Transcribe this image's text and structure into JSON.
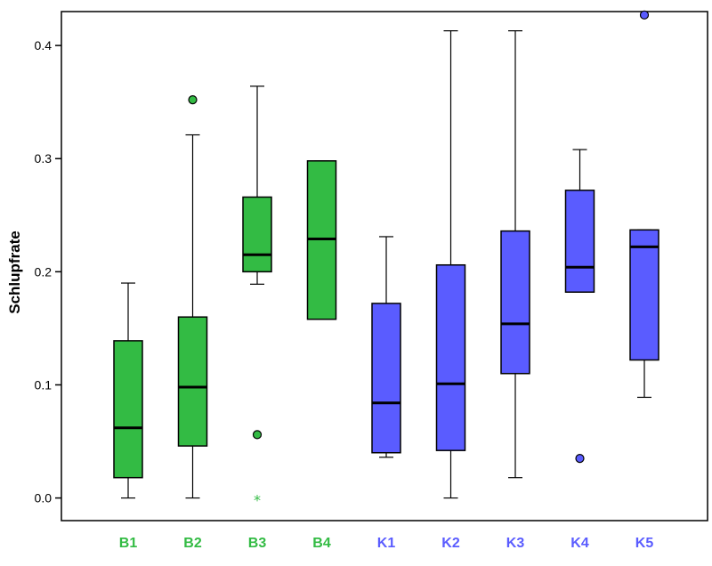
{
  "chart_data": {
    "type": "boxplot",
    "ylabel": "Schlupfrate",
    "xlabel": "",
    "ylim": [
      -0.02,
      0.43
    ],
    "yticks": [
      {
        "v": 0.0,
        "label": "0.0"
      },
      {
        "v": 0.1,
        "label": "0.1"
      },
      {
        "v": 0.2,
        "label": "0.2"
      },
      {
        "v": 0.3,
        "label": "0.3"
      },
      {
        "v": 0.4,
        "label": "0.4"
      }
    ],
    "colors": {
      "B": "#33bb44",
      "K": "#5a5cff"
    },
    "categories": [
      "B1",
      "B2",
      "B3",
      "B4",
      "K1",
      "K2",
      "K3",
      "K4",
      "K5"
    ],
    "boxes": [
      {
        "label": "B1",
        "group": "B",
        "whisker_low": 0.0,
        "q1": 0.018,
        "median": 0.062,
        "q3": 0.139,
        "whisker_high": 0.19,
        "outliers": [],
        "extremes": []
      },
      {
        "label": "B2",
        "group": "B",
        "whisker_low": 0.0,
        "q1": 0.046,
        "median": 0.098,
        "q3": 0.16,
        "whisker_high": 0.321,
        "outliers": [
          0.352
        ],
        "extremes": []
      },
      {
        "label": "B3",
        "group": "B",
        "whisker_low": 0.189,
        "q1": 0.2,
        "median": 0.215,
        "q3": 0.266,
        "whisker_high": 0.364,
        "outliers": [
          0.056
        ],
        "extremes": [
          0.0
        ]
      },
      {
        "label": "B4",
        "group": "B",
        "whisker_low": 0.158,
        "q1": 0.158,
        "median": 0.229,
        "q3": 0.298,
        "whisker_high": 0.298,
        "outliers": [],
        "extremes": []
      },
      {
        "label": "K1",
        "group": "K",
        "whisker_low": 0.036,
        "q1": 0.04,
        "median": 0.084,
        "q3": 0.172,
        "whisker_high": 0.231,
        "outliers": [],
        "extremes": []
      },
      {
        "label": "K2",
        "group": "K",
        "whisker_low": 0.0,
        "q1": 0.042,
        "median": 0.101,
        "q3": 0.206,
        "whisker_high": 0.413,
        "outliers": [],
        "extremes": []
      },
      {
        "label": "K3",
        "group": "K",
        "whisker_low": 0.018,
        "q1": 0.11,
        "median": 0.154,
        "q3": 0.236,
        "whisker_high": 0.413,
        "outliers": [],
        "extremes": []
      },
      {
        "label": "K4",
        "group": "K",
        "whisker_low": 0.182,
        "q1": 0.182,
        "median": 0.204,
        "q3": 0.272,
        "whisker_high": 0.308,
        "outliers": [
          0.035
        ],
        "extremes": []
      },
      {
        "label": "K5",
        "group": "K",
        "whisker_low": 0.089,
        "q1": 0.122,
        "median": 0.222,
        "q3": 0.237,
        "whisker_high": 0.237,
        "outliers": [
          0.427
        ],
        "extremes": []
      }
    ]
  }
}
